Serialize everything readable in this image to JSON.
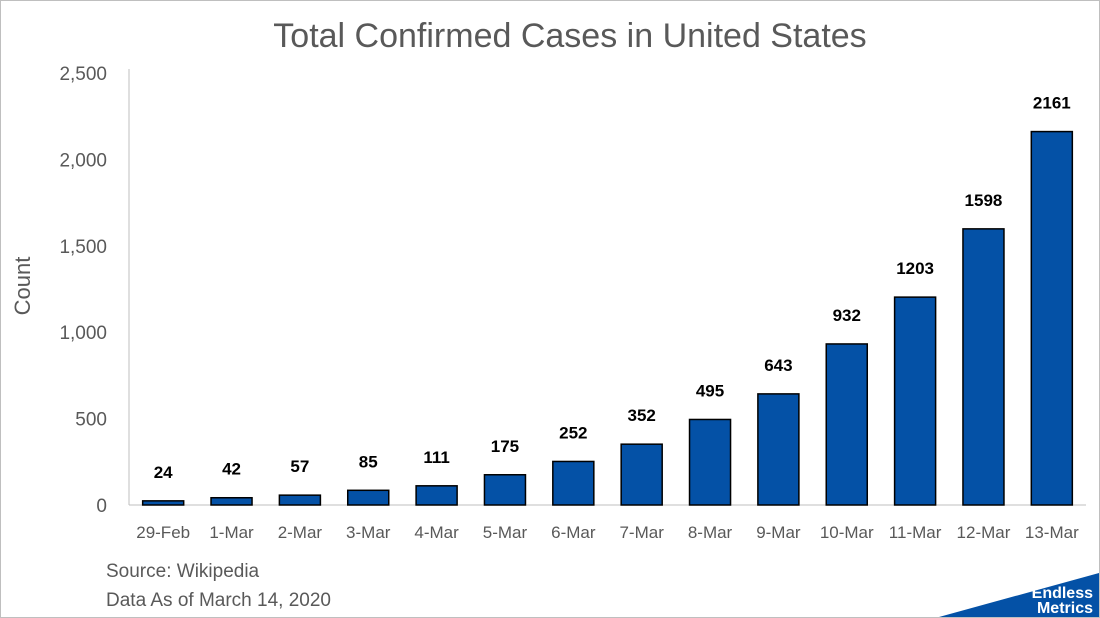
{
  "chart_data": {
    "type": "bar",
    "title": "Total Confirmed Cases in United States",
    "xlabel": "",
    "ylabel": "Count",
    "categories": [
      "29-Feb",
      "1-Mar",
      "2-Mar",
      "3-Mar",
      "4-Mar",
      "5-Mar",
      "6-Mar",
      "7-Mar",
      "8-Mar",
      "9-Mar",
      "10-Mar",
      "11-Mar",
      "12-Mar",
      "13-Mar"
    ],
    "values": [
      24,
      42,
      57,
      85,
      111,
      175,
      252,
      352,
      495,
      643,
      932,
      1203,
      1598,
      2161
    ],
    "data_labels": [
      "24",
      "42",
      "57",
      "85",
      "111",
      "175",
      "252",
      "352",
      "495",
      "643",
      "932",
      "1203",
      "1598",
      "2161"
    ],
    "ylim": [
      0,
      2500
    ],
    "y_ticks": [
      0,
      500,
      1000,
      1500,
      2000,
      2500
    ],
    "y_tick_labels": [
      "0",
      "500",
      "1,000",
      "1,500",
      "2,000",
      "2,500"
    ],
    "grid": false,
    "legend": "none",
    "bar_color": "#0451a6",
    "bar_edge_color": "#000000"
  },
  "footer": {
    "source": "Source: Wikipedia",
    "data_date": "Data As of March 14, 2020"
  },
  "logo": {
    "line1": "Endless",
    "line2": "Metrics",
    "color": "#0451a6"
  }
}
